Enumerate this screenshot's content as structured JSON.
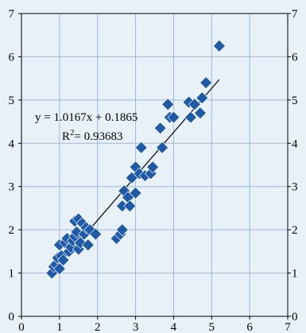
{
  "chart_data": {
    "type": "scatter",
    "title": "",
    "xlabel": "",
    "ylabel": "",
    "xlim": [
      0,
      7
    ],
    "ylim": [
      0,
      7
    ],
    "x_ticks": [
      "0",
      "1",
      "2",
      "3",
      "4",
      "5",
      "6",
      "7"
    ],
    "y_ticks": [
      "0",
      "1",
      "2",
      "3",
      "4",
      "5",
      "6",
      "7"
    ],
    "right_y_ticks": [
      "0",
      "1",
      "2",
      "3",
      "4",
      "5",
      "6",
      "7"
    ],
    "grid": true,
    "marker": "diamond",
    "marker_color": "#1f5aa6",
    "trendline": {
      "type": "linear",
      "slope": 1.0167,
      "intercept": 0.1865,
      "x_range": [
        0.8,
        5.2
      ],
      "color": "#000000"
    },
    "annotations": {
      "equation": "y = 1.0167x + 0.1865",
      "r_squared_prefix": "R",
      "r_squared_sup": "2",
      "r_squared_value": "= 0.93683"
    },
    "points": [
      {
        "x": 0.8,
        "y": 1.0
      },
      {
        "x": 0.85,
        "y": 1.15
      },
      {
        "x": 0.9,
        "y": 1.2
      },
      {
        "x": 0.95,
        "y": 1.35
      },
      {
        "x": 1.0,
        "y": 1.1
      },
      {
        "x": 1.0,
        "y": 1.65
      },
      {
        "x": 1.05,
        "y": 1.4
      },
      {
        "x": 1.1,
        "y": 1.3
      },
      {
        "x": 1.15,
        "y": 1.7
      },
      {
        "x": 1.2,
        "y": 1.8
      },
      {
        "x": 1.25,
        "y": 1.5
      },
      {
        "x": 1.3,
        "y": 1.6
      },
      {
        "x": 1.35,
        "y": 1.75
      },
      {
        "x": 1.4,
        "y": 1.85
      },
      {
        "x": 1.4,
        "y": 2.2
      },
      {
        "x": 1.45,
        "y": 1.95
      },
      {
        "x": 1.5,
        "y": 1.55
      },
      {
        "x": 1.5,
        "y": 2.25
      },
      {
        "x": 1.55,
        "y": 1.7
      },
      {
        "x": 1.6,
        "y": 2.15
      },
      {
        "x": 1.65,
        "y": 1.9
      },
      {
        "x": 1.7,
        "y": 2.05
      },
      {
        "x": 1.75,
        "y": 1.65
      },
      {
        "x": 1.8,
        "y": 2.0
      },
      {
        "x": 1.95,
        "y": 1.9
      },
      {
        "x": 2.5,
        "y": 1.8
      },
      {
        "x": 2.6,
        "y": 1.9
      },
      {
        "x": 2.65,
        "y": 2.55
      },
      {
        "x": 2.65,
        "y": 2.0
      },
      {
        "x": 2.7,
        "y": 2.9
      },
      {
        "x": 2.8,
        "y": 2.75
      },
      {
        "x": 2.85,
        "y": 2.55
      },
      {
        "x": 2.9,
        "y": 3.2
      },
      {
        "x": 3.0,
        "y": 2.85
      },
      {
        "x": 3.0,
        "y": 3.45
      },
      {
        "x": 3.1,
        "y": 3.3
      },
      {
        "x": 3.15,
        "y": 3.9
      },
      {
        "x": 3.25,
        "y": 3.25
      },
      {
        "x": 3.4,
        "y": 3.3
      },
      {
        "x": 3.45,
        "y": 3.45
      },
      {
        "x": 3.65,
        "y": 4.35
      },
      {
        "x": 3.7,
        "y": 3.9
      },
      {
        "x": 3.85,
        "y": 4.9
      },
      {
        "x": 3.9,
        "y": 4.6
      },
      {
        "x": 4.0,
        "y": 4.6
      },
      {
        "x": 4.4,
        "y": 4.95
      },
      {
        "x": 4.45,
        "y": 4.6
      },
      {
        "x": 4.55,
        "y": 4.9
      },
      {
        "x": 4.7,
        "y": 4.7
      },
      {
        "x": 4.75,
        "y": 5.05
      },
      {
        "x": 4.85,
        "y": 5.4
      },
      {
        "x": 5.2,
        "y": 6.25
      }
    ]
  }
}
